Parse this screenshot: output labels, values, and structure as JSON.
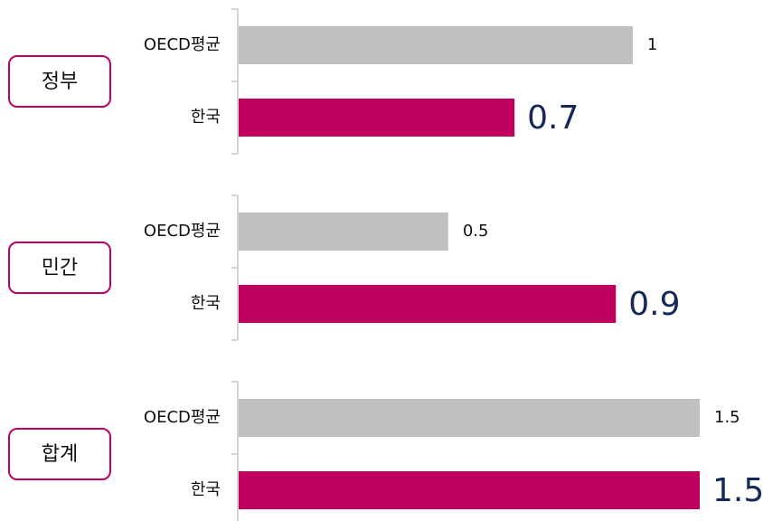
{
  "chart_data": [
    {
      "type": "barh",
      "title": "정부",
      "categories": [
        "OECD평균",
        "한국"
      ],
      "values": [
        1,
        0.7
      ],
      "colors": [
        "#c0c0c0",
        "#c0005f"
      ],
      "xlim": [
        0,
        1.17
      ]
    },
    {
      "type": "barh",
      "title": "민간",
      "categories": [
        "OECD평균",
        "한국"
      ],
      "values": [
        0.5,
        0.9
      ],
      "colors": [
        "#c0c0c0",
        "#c0005f"
      ],
      "xlim": [
        0,
        1.1
      ]
    },
    {
      "type": "barh",
      "title": "합계",
      "categories": [
        "OECD평균",
        "한국"
      ],
      "values": [
        1.5,
        1.5
      ],
      "colors": [
        "#c0c0c0",
        "#c0005f"
      ],
      "xlim": [
        0,
        1.5
      ]
    }
  ]
}
